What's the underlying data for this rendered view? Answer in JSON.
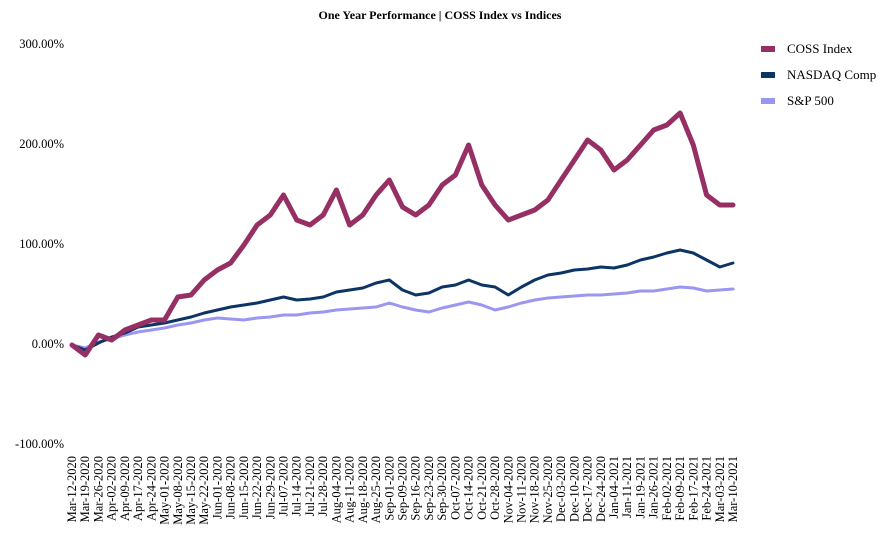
{
  "chart_data": {
    "type": "line",
    "title": "One Year Performance | COSS Index vs Indices",
    "xlabel": "",
    "ylabel": "",
    "ylim": [
      -100,
      300
    ],
    "yticks": [
      "300.00%",
      "200.00%",
      "100.00%",
      "0.00%",
      "-100.00%"
    ],
    "grid": false,
    "legend": "top-right",
    "x": [
      "Mar-12-2020",
      "Mar-19-2020",
      "Mar-26-2020",
      "Apr-02-2020",
      "Apr-09-2020",
      "Apr-17-2020",
      "Apr-24-2020",
      "May-01-2020",
      "May-08-2020",
      "May-15-2020",
      "May-22-2020",
      "Jun-01-2020",
      "Jun-08-2020",
      "Jun-15-2020",
      "Jun-22-2020",
      "Jun-29-2020",
      "Jul-07-2020",
      "Jul-14-2020",
      "Jul-21-2020",
      "Jul-28-2020",
      "Aug-04-2020",
      "Aug-11-2020",
      "Aug-18-2020",
      "Aug-25-2020",
      "Sep-01-2020",
      "Sep-09-2020",
      "Sep-16-2020",
      "Sep-23-2020",
      "Sep-30-2020",
      "Oct-07-2020",
      "Oct-14-2020",
      "Oct-21-2020",
      "Oct-28-2020",
      "Nov-04-2020",
      "Nov-11-2020",
      "Nov-18-2020",
      "Nov-25-2020",
      "Dec-03-2020",
      "Dec-10-2020",
      "Dec-17-2020",
      "Dec-24-2020",
      "Jan-04-2021",
      "Jan-11-2021",
      "Jan-19-2021",
      "Jan-26-2021",
      "Feb-02-2021",
      "Feb-09-2021",
      "Feb-17-2021",
      "Feb-24-2021",
      "Mar-03-2021",
      "Mar-10-2021"
    ],
    "series": [
      {
        "name": "COSS Index",
        "color": "#962f63",
        "values": [
          0,
          -10,
          10,
          5,
          15,
          20,
          25,
          25,
          48,
          50,
          65,
          75,
          82,
          100,
          120,
          130,
          150,
          125,
          120,
          130,
          155,
          120,
          130,
          150,
          165,
          138,
          130,
          140,
          160,
          170,
          200,
          160,
          140,
          125,
          130,
          135,
          145,
          165,
          185,
          205,
          195,
          175,
          185,
          200,
          215,
          220,
          232,
          200,
          150,
          140,
          140
        ]
      },
      {
        "name": "NASDAQ Comp",
        "color": "#0c3566",
        "values": [
          0,
          -5,
          2,
          8,
          12,
          18,
          20,
          22,
          25,
          28,
          32,
          35,
          38,
          40,
          42,
          45,
          48,
          45,
          46,
          48,
          53,
          55,
          57,
          62,
          65,
          55,
          50,
          52,
          58,
          60,
          65,
          60,
          58,
          50,
          58,
          65,
          70,
          72,
          75,
          76,
          78,
          77,
          80,
          85,
          88,
          92,
          95,
          92,
          85,
          78,
          82
        ]
      },
      {
        "name": "S&P 500",
        "color": "#9b96f0",
        "values": [
          0,
          -3,
          3,
          6,
          10,
          13,
          15,
          17,
          20,
          22,
          25,
          27,
          26,
          25,
          27,
          28,
          30,
          30,
          32,
          33,
          35,
          36,
          37,
          38,
          42,
          38,
          35,
          33,
          37,
          40,
          43,
          40,
          35,
          38,
          42,
          45,
          47,
          48,
          49,
          50,
          50,
          51,
          52,
          54,
          54,
          56,
          58,
          57,
          54,
          55,
          56
        ]
      }
    ]
  }
}
